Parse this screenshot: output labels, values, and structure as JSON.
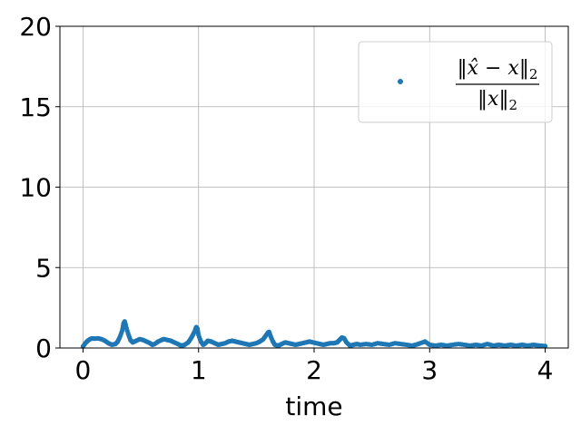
{
  "chart_data": {
    "type": "scatter",
    "xlabel": "time",
    "ylabel": "",
    "xlim": [
      -0.2,
      4.2
    ],
    "ylim": [
      0,
      20
    ],
    "xticks": [
      0,
      1,
      2,
      3,
      4
    ],
    "yticks": [
      0,
      5,
      10,
      15,
      20
    ],
    "xtick_labels": [
      "0",
      "1",
      "2",
      "3",
      "4"
    ],
    "ytick_labels": [
      "0",
      "5",
      "10",
      "15",
      "20"
    ],
    "grid": true,
    "legend_position": "top-right",
    "series": [
      {
        "name": "‖x̂ − x‖₂ / ‖x‖₂",
        "color": "#1f77b4",
        "marker": "dot",
        "x": [
          0.0,
          0.02,
          0.04,
          0.06,
          0.08,
          0.1,
          0.13,
          0.16,
          0.19,
          0.22,
          0.25,
          0.28,
          0.3,
          0.32,
          0.34,
          0.35,
          0.36,
          0.37,
          0.39,
          0.41,
          0.43,
          0.46,
          0.49,
          0.52,
          0.55,
          0.58,
          0.6,
          0.62,
          0.65,
          0.68,
          0.7,
          0.73,
          0.76,
          0.79,
          0.82,
          0.85,
          0.88,
          0.91,
          0.93,
          0.95,
          0.97,
          0.98,
          0.99,
          1.0,
          1.02,
          1.04,
          1.06,
          1.08,
          1.11,
          1.14,
          1.17,
          1.2,
          1.23,
          1.26,
          1.29,
          1.32,
          1.35,
          1.38,
          1.41,
          1.44,
          1.47,
          1.5,
          1.53,
          1.56,
          1.58,
          1.6,
          1.61,
          1.62,
          1.64,
          1.66,
          1.69,
          1.72,
          1.75,
          1.78,
          1.81,
          1.84,
          1.87,
          1.9,
          1.93,
          1.96,
          1.99,
          2.02,
          2.05,
          2.08,
          2.11,
          2.14,
          2.17,
          2.2,
          2.22,
          2.24,
          2.26,
          2.28,
          2.31,
          2.34,
          2.37,
          2.4,
          2.45,
          2.5,
          2.55,
          2.6,
          2.65,
          2.7,
          2.75,
          2.8,
          2.85,
          2.88,
          2.92,
          2.96,
          3.0,
          3.05,
          3.1,
          3.15,
          3.2,
          3.25,
          3.3,
          3.35,
          3.4,
          3.45,
          3.5,
          3.55,
          3.6,
          3.65,
          3.7,
          3.75,
          3.8,
          3.85,
          3.9,
          3.95,
          4.0
        ],
        "values": [
          0.1,
          0.3,
          0.45,
          0.55,
          0.6,
          0.58,
          0.6,
          0.55,
          0.45,
          0.3,
          0.2,
          0.25,
          0.4,
          0.7,
          1.1,
          1.5,
          1.65,
          1.4,
          0.9,
          0.5,
          0.35,
          0.45,
          0.55,
          0.5,
          0.4,
          0.3,
          0.2,
          0.25,
          0.4,
          0.5,
          0.55,
          0.5,
          0.45,
          0.35,
          0.25,
          0.15,
          0.2,
          0.35,
          0.55,
          0.8,
          1.1,
          1.3,
          1.2,
          0.8,
          0.4,
          0.2,
          0.3,
          0.45,
          0.4,
          0.3,
          0.2,
          0.25,
          0.3,
          0.4,
          0.45,
          0.4,
          0.35,
          0.3,
          0.25,
          0.2,
          0.25,
          0.3,
          0.4,
          0.55,
          0.75,
          0.95,
          1.0,
          0.8,
          0.45,
          0.2,
          0.15,
          0.25,
          0.35,
          0.3,
          0.25,
          0.2,
          0.25,
          0.3,
          0.35,
          0.4,
          0.35,
          0.3,
          0.25,
          0.2,
          0.25,
          0.3,
          0.3,
          0.35,
          0.5,
          0.65,
          0.6,
          0.35,
          0.15,
          0.2,
          0.25,
          0.2,
          0.25,
          0.2,
          0.3,
          0.25,
          0.2,
          0.3,
          0.25,
          0.2,
          0.15,
          0.2,
          0.3,
          0.4,
          0.2,
          0.15,
          0.2,
          0.15,
          0.2,
          0.25,
          0.2,
          0.15,
          0.2,
          0.15,
          0.25,
          0.15,
          0.2,
          0.15,
          0.2,
          0.15,
          0.2,
          0.15,
          0.2,
          0.15,
          0.12
        ]
      }
    ]
  }
}
